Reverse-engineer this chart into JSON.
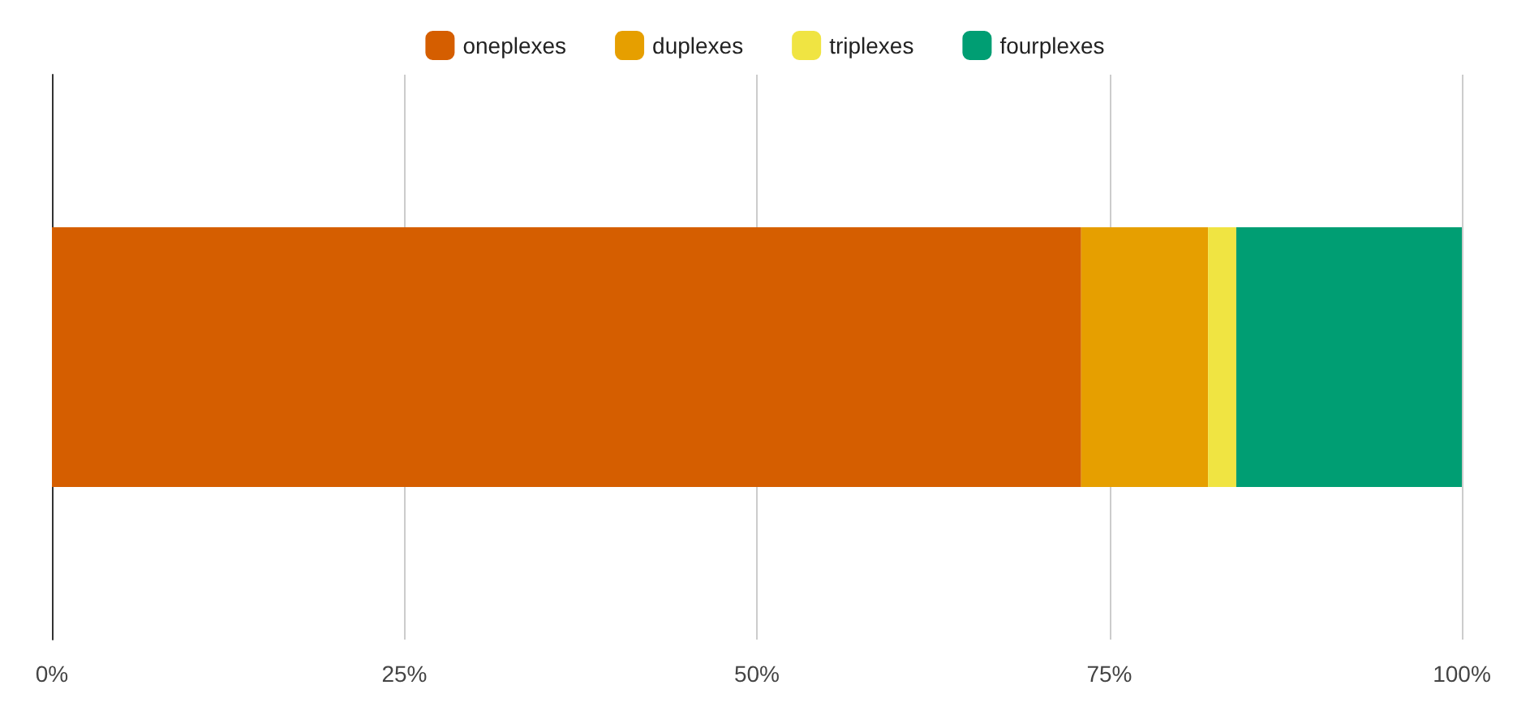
{
  "chart_data": {
    "type": "bar",
    "orientation": "horizontal",
    "stacked": true,
    "categories": [
      null
    ],
    "series": [
      {
        "name": "oneplexes",
        "color": "#d55e00",
        "values": [
          73
        ]
      },
      {
        "name": "duplexes",
        "color": "#e69f00",
        "values": [
          9
        ]
      },
      {
        "name": "triplexes",
        "color": "#f0e442",
        "values": [
          2
        ]
      },
      {
        "name": "fourplexes",
        "color": "#009e73",
        "values": [
          16
        ]
      }
    ],
    "xlim": [
      0,
      100
    ],
    "xticks": [
      {
        "value": 0,
        "label": "0%"
      },
      {
        "value": 25,
        "label": "25%"
      },
      {
        "value": 50,
        "label": "50%"
      },
      {
        "value": 75,
        "label": "75%"
      },
      {
        "value": 100,
        "label": "100%"
      }
    ],
    "grid": "x",
    "legend": "top"
  }
}
